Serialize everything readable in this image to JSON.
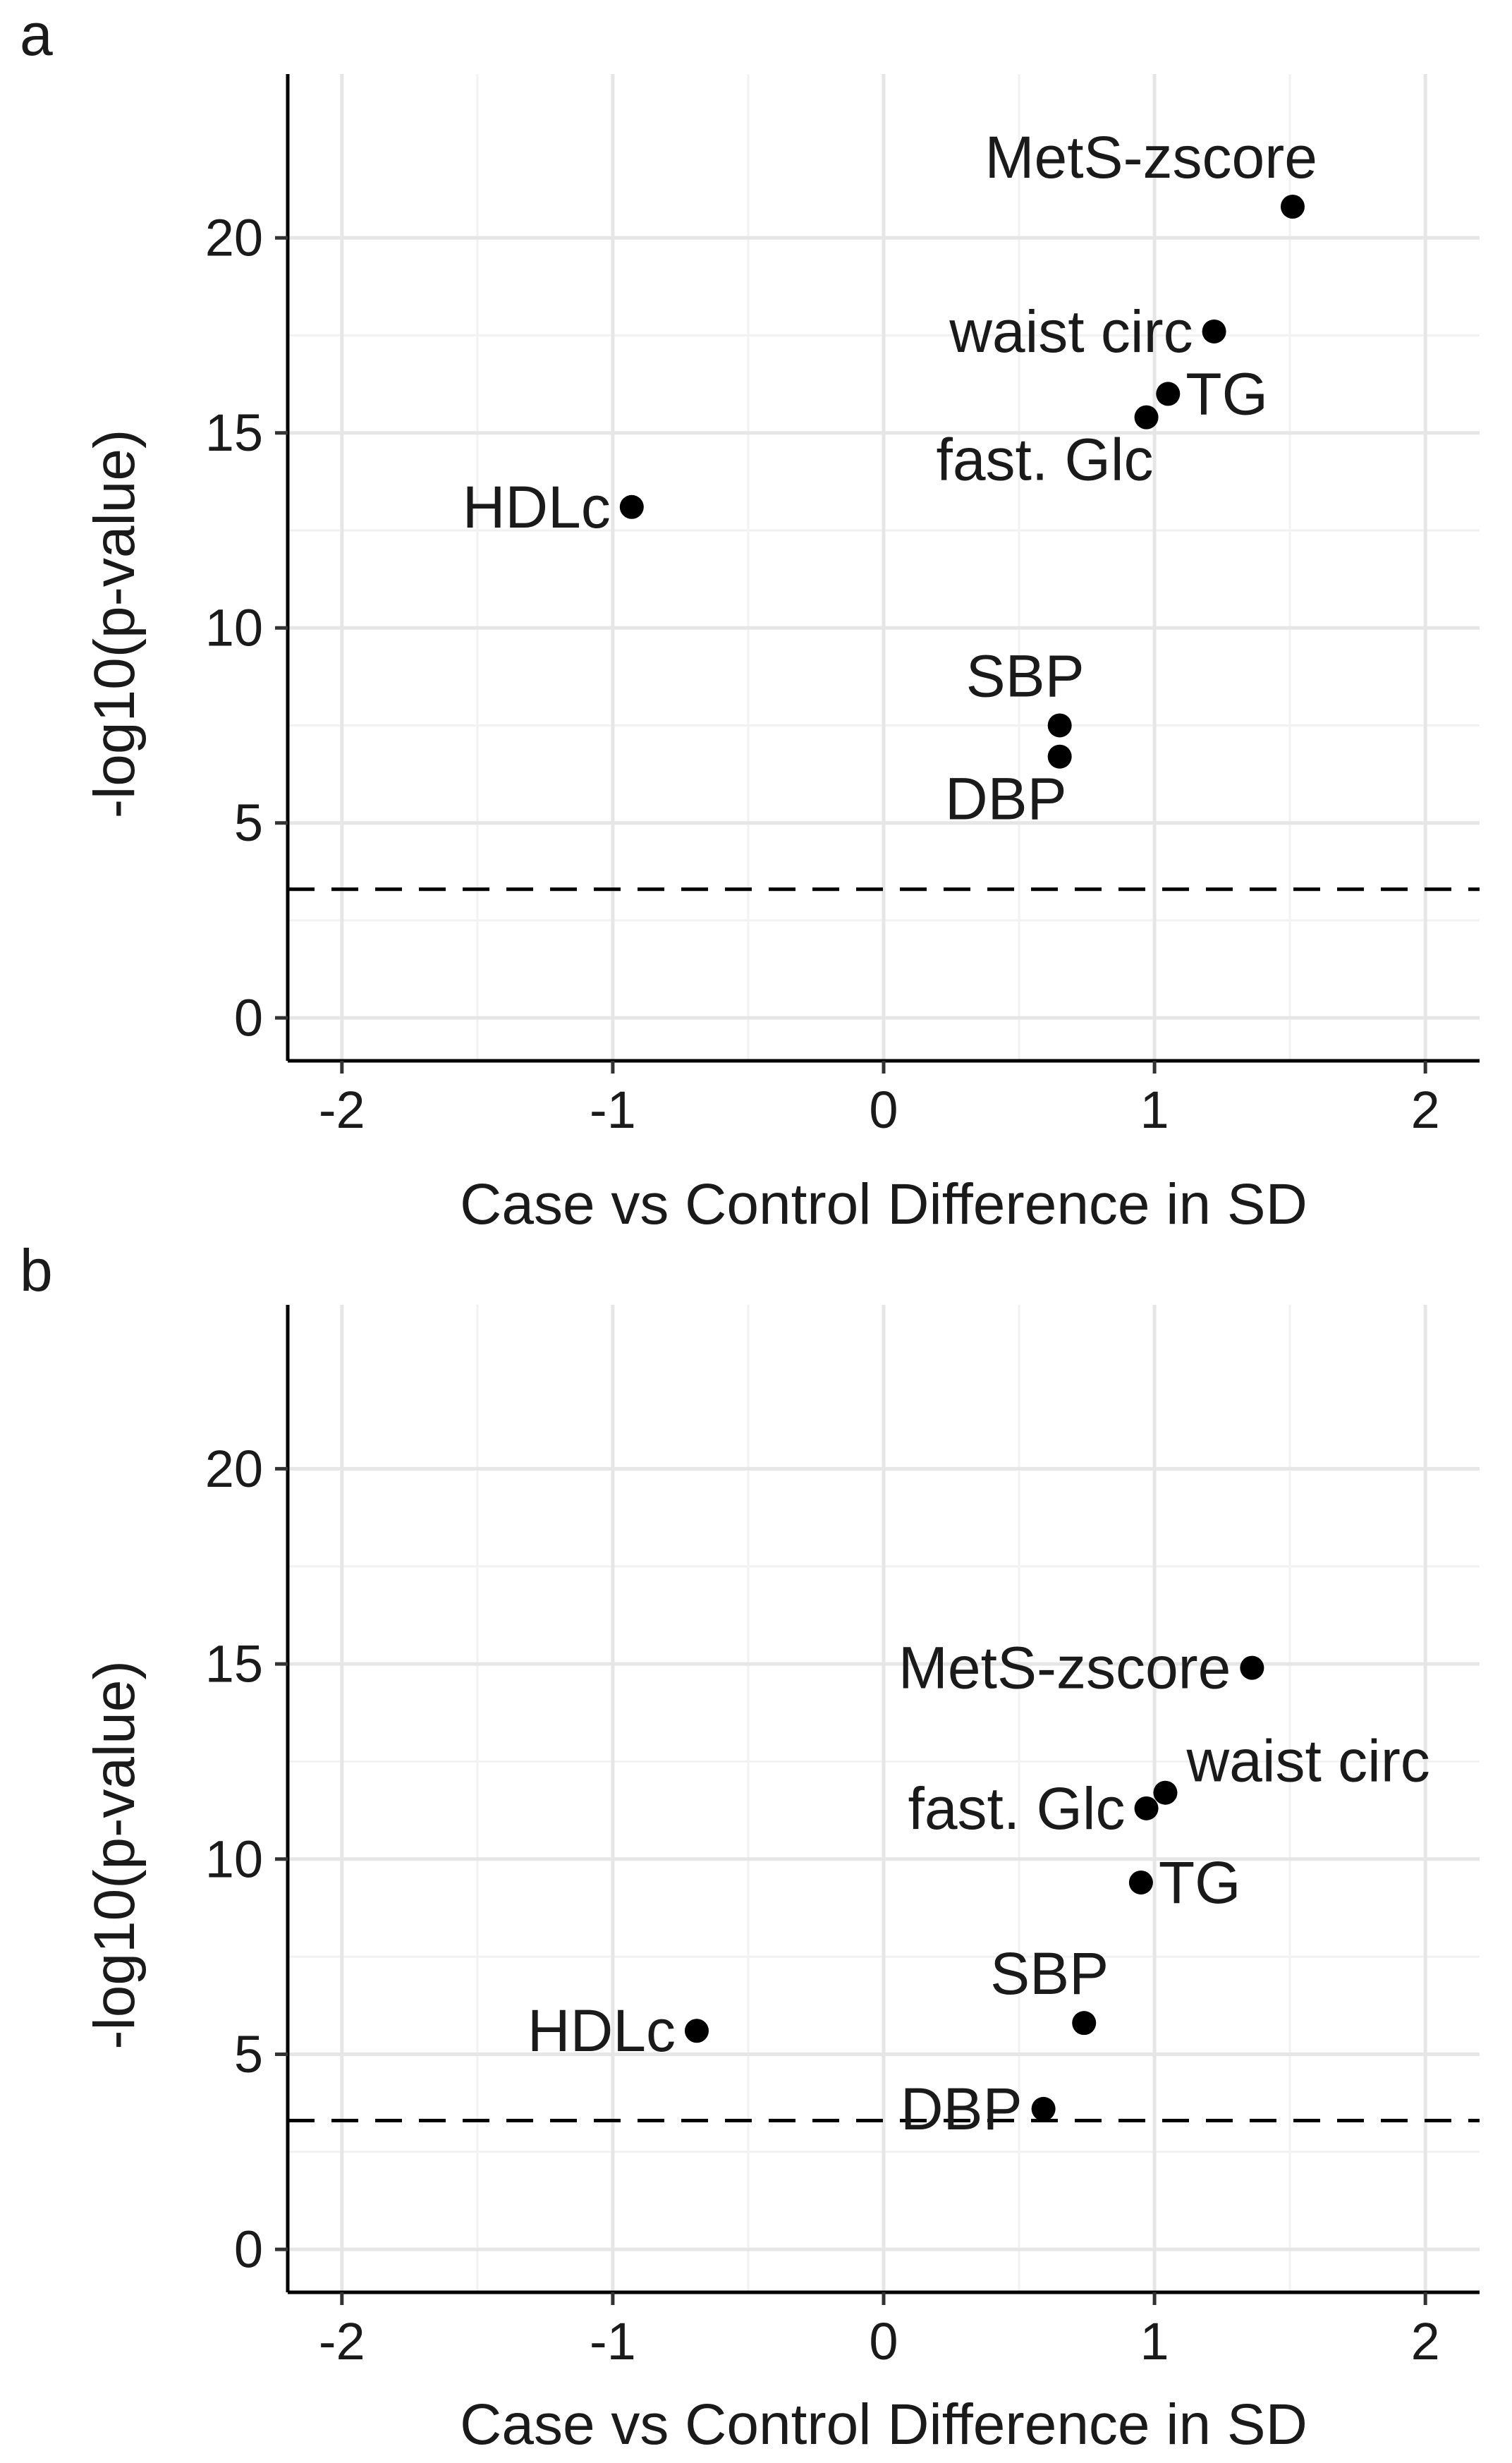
{
  "chart_data": [
    {
      "panel_label": "a",
      "type": "scatter",
      "title": "",
      "xlabel": "Case vs Control Difference in SD",
      "ylabel": "-log10(p-value)",
      "xlim": [
        -2.2,
        2.2
      ],
      "ylim": [
        -1.1,
        24.2
      ],
      "xticks": [
        -2,
        -1,
        0,
        1,
        2
      ],
      "yticks": [
        0,
        5,
        10,
        15,
        20
      ],
      "grid": true,
      "threshold": 3.3,
      "points": [
        {
          "label": "MetS-zscore",
          "x": 1.51,
          "y": 20.8,
          "label_pos": "above-left"
        },
        {
          "label": "waist circ",
          "x": 1.22,
          "y": 17.6,
          "label_pos": "left"
        },
        {
          "label": "TG",
          "x": 1.05,
          "y": 16.0,
          "label_pos": "right"
        },
        {
          "label": "fast. Glc",
          "x": 0.97,
          "y": 15.4,
          "label_pos": "below-left"
        },
        {
          "label": "HDLc",
          "x": -0.93,
          "y": 13.1,
          "label_pos": "left"
        },
        {
          "label": "SBP",
          "x": 0.65,
          "y": 7.5,
          "label_pos": "above-left"
        },
        {
          "label": "DBP",
          "x": 0.65,
          "y": 6.7,
          "label_pos": "below-left"
        }
      ]
    },
    {
      "panel_label": "b",
      "type": "scatter",
      "title": "",
      "xlabel": "Case vs Control Difference in SD",
      "ylabel": "-log10(p-value)",
      "xlim": [
        -2.2,
        2.2
      ],
      "ylim": [
        -1.1,
        24.2
      ],
      "xticks": [
        -2,
        -1,
        0,
        1,
        2
      ],
      "yticks": [
        0,
        5,
        10,
        15,
        20
      ],
      "grid": true,
      "threshold": 3.3,
      "points": [
        {
          "label": "MetS-zscore",
          "x": 1.36,
          "y": 14.9,
          "label_pos": "left"
        },
        {
          "label": "waist circ",
          "x": 1.04,
          "y": 11.7,
          "label_pos": "above-right"
        },
        {
          "label": "fast. Glc",
          "x": 0.97,
          "y": 11.3,
          "label_pos": "left"
        },
        {
          "label": "TG",
          "x": 0.95,
          "y": 9.4,
          "label_pos": "right"
        },
        {
          "label": "HDLc",
          "x": -0.69,
          "y": 5.6,
          "label_pos": "left"
        },
        {
          "label": "SBP",
          "x": 0.74,
          "y": 5.8,
          "label_pos": "above-left"
        },
        {
          "label": "DBP",
          "x": 0.59,
          "y": 3.6,
          "label_pos": "left"
        }
      ]
    }
  ]
}
